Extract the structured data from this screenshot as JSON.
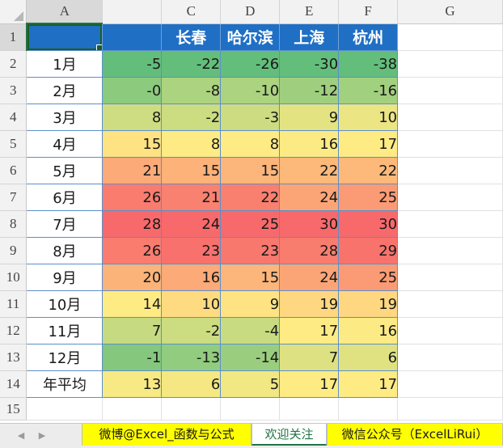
{
  "spreadsheet": {
    "column_headers": [
      "A",
      "",
      "C",
      "D",
      "E",
      "F",
      "G"
    ],
    "row_numbers": [
      "1",
      "2",
      "3",
      "4",
      "5",
      "6",
      "7",
      "8",
      "9",
      "10",
      "11",
      "12",
      "13",
      "14",
      "15"
    ],
    "header_row": [
      "",
      "",
      "长春",
      "哈尔滨",
      "上海",
      "杭州"
    ],
    "rows": [
      {
        "label": "1月",
        "values": [
          "-5",
          "-22",
          "-26",
          "-30",
          "-38"
        ]
      },
      {
        "label": "2月",
        "values": [
          "-0",
          "-8",
          "-10",
          "-12",
          "-16"
        ]
      },
      {
        "label": "3月",
        "values": [
          "8",
          "-2",
          "-3",
          "9",
          "10"
        ]
      },
      {
        "label": "4月",
        "values": [
          "15",
          "8",
          "8",
          "16",
          "17"
        ]
      },
      {
        "label": "5月",
        "values": [
          "21",
          "15",
          "15",
          "22",
          "22"
        ]
      },
      {
        "label": "6月",
        "values": [
          "26",
          "21",
          "22",
          "24",
          "25"
        ]
      },
      {
        "label": "7月",
        "values": [
          "28",
          "24",
          "25",
          "30",
          "30"
        ]
      },
      {
        "label": "8月",
        "values": [
          "26",
          "23",
          "23",
          "28",
          "29"
        ]
      },
      {
        "label": "9月",
        "values": [
          "20",
          "16",
          "15",
          "24",
          "25"
        ]
      },
      {
        "label": "10月",
        "values": [
          "14",
          "10",
          "9",
          "19",
          "19"
        ]
      },
      {
        "label": "11月",
        "values": [
          "7",
          "-2",
          "-4",
          "17",
          "16"
        ]
      },
      {
        "label": "12月",
        "values": [
          "-1",
          "-13",
          "-14",
          "7",
          "6"
        ]
      },
      {
        "label": "年平均",
        "values": [
          "13",
          "6",
          "5",
          "17",
          "17"
        ]
      }
    ],
    "colors": {
      "header_fill": "#1f6fc5",
      "scale_low": "#63be7b",
      "scale_mid": "#ffeb84",
      "scale_high": "#f8696b"
    }
  },
  "sheet_tabs": {
    "nav_prev_icon": "triangle-left-icon",
    "nav_next_icon": "triangle-right-icon",
    "tabs": [
      {
        "label": "微博@Excel_函数与公式",
        "active": false
      },
      {
        "label": "欢迎关注",
        "active": true
      },
      {
        "label": "微信公众号（ExcelLiRui）",
        "active": false
      }
    ]
  }
}
